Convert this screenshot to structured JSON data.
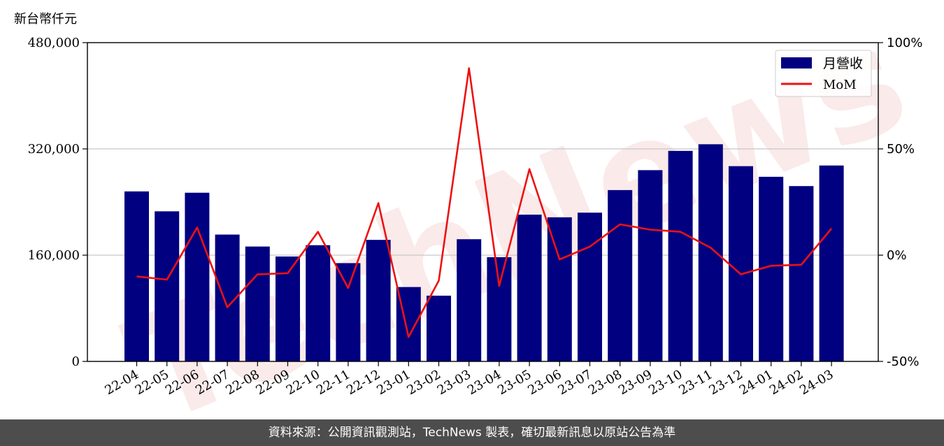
{
  "chart_data": {
    "type": "bar",
    "unit_label": "新台幣仟元",
    "categories": [
      "22-04",
      "22-05",
      "22-06",
      "22-07",
      "22-08",
      "22-09",
      "22-10",
      "22-11",
      "22-12",
      "23-01",
      "23-02",
      "23-03",
      "23-04",
      "23-05",
      "23-06",
      "23-07",
      "23-08",
      "23-09",
      "23-10",
      "23-11",
      "23-12",
      "24-01",
      "24-02",
      "24-03"
    ],
    "series": [
      {
        "name": "月營收",
        "type": "bar",
        "axis": "left",
        "color": "#000080",
        "values": [
          256000,
          226000,
          254000,
          191000,
          173000,
          158000,
          175000,
          148000,
          183000,
          112000,
          99000,
          184000,
          157000,
          221000,
          217000,
          224000,
          258000,
          288000,
          317000,
          327000,
          294000,
          278000,
          264000,
          295000
        ]
      },
      {
        "name": "MoM",
        "type": "line",
        "axis": "right",
        "color": "#ee1111",
        "values": [
          -10,
          -11.5,
          13,
          -24.5,
          -9,
          -8.5,
          11,
          -15.5,
          24.5,
          -38.5,
          -12,
          88,
          -14.5,
          40.5,
          -2,
          4,
          14.5,
          12,
          11,
          3.5,
          -9,
          -5,
          -4.5,
          12.5
        ]
      }
    ],
    "y_left": {
      "min": 0,
      "max": 480000,
      "ticks": [
        0,
        160000,
        320000,
        480000
      ],
      "tick_labels": [
        "0",
        "160,000",
        "320,000",
        "480,000"
      ]
    },
    "y_right": {
      "min": -50,
      "max": 100,
      "ticks": [
        -50,
        0,
        50,
        100
      ],
      "tick_labels": [
        "-50%",
        "0%",
        "50%",
        "100%"
      ]
    },
    "grid": "horizontal",
    "legend_position": "top-right"
  },
  "watermark": "TechNews",
  "footer": {
    "text": "資料來源：公開資訊觀測站，TechNews 製表，確切最新訊息以原站公告為準"
  }
}
